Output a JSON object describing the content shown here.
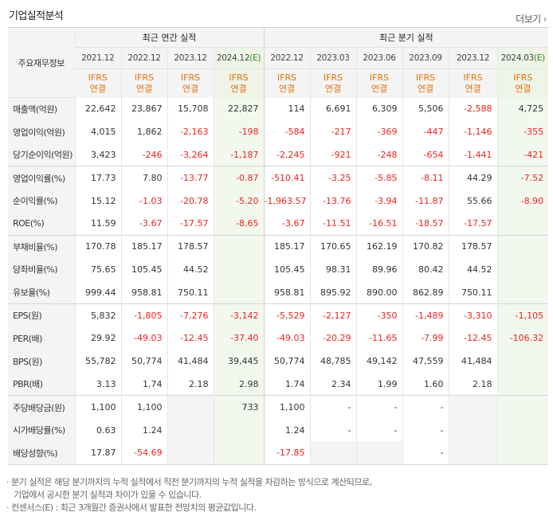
{
  "title": "기업실적분석",
  "more": {
    "label": "더보기",
    "arrow": "›"
  },
  "table": {
    "row_header": "주요재무정보",
    "group_annual": "최근 연간 실적",
    "group_quarter": "최근 분기 실적",
    "periods": [
      {
        "label": "2021.12",
        "est": ""
      },
      {
        "label": "2022.12",
        "est": ""
      },
      {
        "label": "2023.12",
        "est": ""
      },
      {
        "label": "2024.12",
        "est": "(E)"
      },
      {
        "label": "2022.12",
        "est": ""
      },
      {
        "label": "2023.03",
        "est": ""
      },
      {
        "label": "2023.06",
        "est": ""
      },
      {
        "label": "2023.09",
        "est": ""
      },
      {
        "label": "2023.12",
        "est": ""
      },
      {
        "label": "2024.03",
        "est": "(E)"
      }
    ],
    "ifrs_top": "IFRS",
    "ifrs_bottom": "연결",
    "rows": [
      {
        "label": "매출액(억원)",
        "values": [
          "22,642",
          "23,867",
          "15,708",
          "22,827",
          "114",
          "6,691",
          "6,309",
          "5,506",
          "-2,588",
          "4,725"
        ]
      },
      {
        "label": "영업이익(억원)",
        "values": [
          "4,015",
          "1,862",
          "-2,163",
          "-198",
          "-584",
          "-217",
          "-369",
          "-447",
          "-1,146",
          "-355"
        ]
      },
      {
        "label": "당기순이익(억원)",
        "values": [
          "3,423",
          "-246",
          "-3,264",
          "-1,187",
          "-2,245",
          "-921",
          "-248",
          "-654",
          "-1,441",
          "-421"
        ]
      },
      {
        "label": "영업이익률(%)",
        "values": [
          "17.73",
          "7.80",
          "-13.77",
          "-0.87",
          "-510.41",
          "-3.25",
          "-5.85",
          "-8.11",
          "44.29",
          "-7.52"
        ]
      },
      {
        "label": "순이익률(%)",
        "values": [
          "15.12",
          "-1.03",
          "-20.78",
          "-5.20",
          "-1,963.57",
          "-13.76",
          "-3.94",
          "-11.87",
          "55.66",
          "-8.90"
        ]
      },
      {
        "label": "ROE(%)",
        "values": [
          "11.59",
          "-3.67",
          "-17.57",
          "-8.65",
          "-3.67",
          "-11.51",
          "-16.51",
          "-18.57",
          "-17.57",
          ""
        ]
      },
      {
        "label": "부채비율(%)",
        "values": [
          "170.78",
          "185.17",
          "178.57",
          "",
          "185.17",
          "170.65",
          "162.19",
          "170.82",
          "178.57",
          ""
        ]
      },
      {
        "label": "당좌비율(%)",
        "values": [
          "75.65",
          "105.45",
          "44.52",
          "",
          "105.45",
          "98.31",
          "89.96",
          "80.42",
          "44.52",
          ""
        ]
      },
      {
        "label": "유보율(%)",
        "values": [
          "999.44",
          "958.81",
          "750.11",
          "",
          "958.81",
          "895.92",
          "890.00",
          "862.89",
          "750.11",
          ""
        ]
      },
      {
        "label": "EPS(원)",
        "values": [
          "5,832",
          "-1,805",
          "-7,276",
          "-3,142",
          "-5,529",
          "-2,127",
          "-350",
          "-1,489",
          "-3,310",
          "-1,105"
        ]
      },
      {
        "label": "PER(배)",
        "values": [
          "29.92",
          "-49.03",
          "-12.45",
          "-37.40",
          "-49.03",
          "-20.29",
          "-11.65",
          "-7.99",
          "-12.45",
          "-106.32"
        ]
      },
      {
        "label": "BPS(원)",
        "values": [
          "55,782",
          "50,774",
          "41,484",
          "39,445",
          "50,774",
          "48,785",
          "49,142",
          "47,559",
          "41,484",
          ""
        ]
      },
      {
        "label": "PBR(배)",
        "values": [
          "3.13",
          "1.74",
          "2.18",
          "2.98",
          "1.74",
          "2.34",
          "1.99",
          "1.60",
          "2.18",
          ""
        ]
      },
      {
        "label": "주당배당금(원)",
        "values": [
          "1,100",
          "1,100",
          "",
          "733",
          "1,100",
          "-",
          "-",
          "-",
          "",
          ""
        ]
      },
      {
        "label": "시가배당률(%)",
        "values": [
          "0.63",
          "1.24",
          "",
          "",
          "1.24",
          "-",
          "-",
          "-",
          "",
          ""
        ]
      },
      {
        "label": "배당성향(%)",
        "values": [
          "17.87",
          "-54.69",
          "",
          "",
          "-17.85",
          "",
          "",
          "-",
          "",
          ""
        ]
      }
    ]
  },
  "notes": [
    "· 분기 실적은 해당 분기까지의 누적 실적에서 직전 분기까지의 누적 실적을 차감하는 방식으로 계산되므로,",
    "기업에서 공시한 분기 실적과 차이가 있을 수 있습니다.",
    "· 컨센서스(E) : 최근 3개월간 증권사에서 발표한 전망치의 평균값입니다."
  ]
}
